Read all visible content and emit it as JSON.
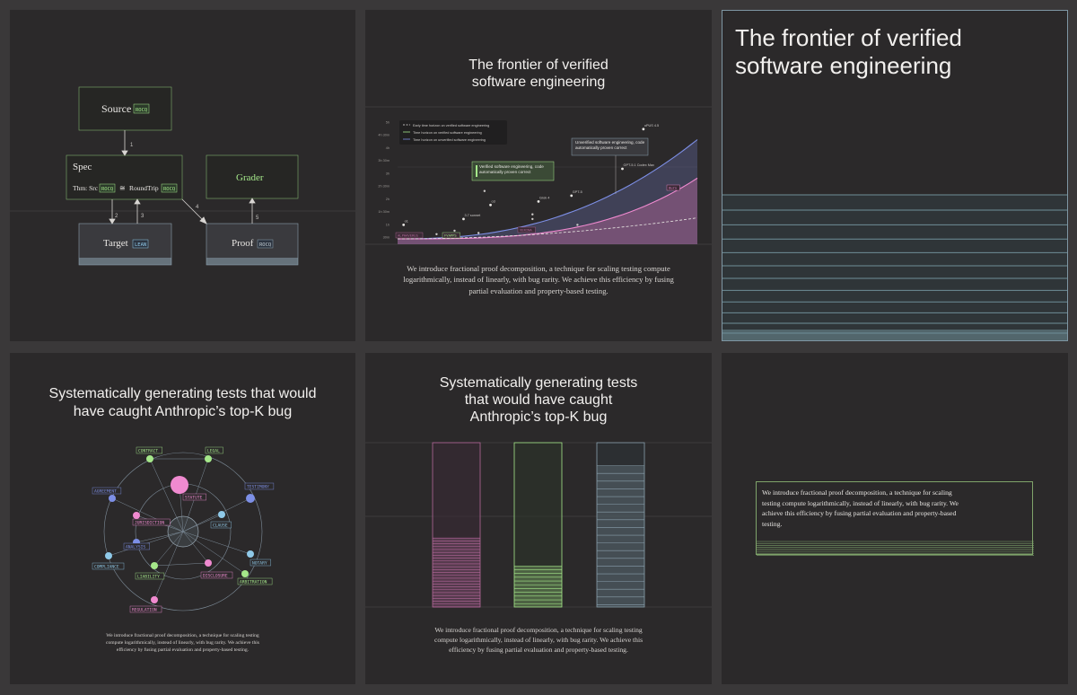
{
  "colors": {
    "background": "#3a3839",
    "panel": "#2b292a",
    "green": "#a5e88a",
    "blue": "#7d8fe6",
    "cyan": "#8fc9e8",
    "pink": "#f08ad0",
    "slate": "#8aa0ad"
  },
  "diagram": {
    "source": "Source",
    "spec": "Spec",
    "spec_formula": "Thm: Src",
    "round_trip": "RoundTrip",
    "approx_symbol": "≅",
    "grader": "Grader",
    "target": "Target",
    "proof": "Proof",
    "tag_rocq": "ROCQ",
    "tag_lean": "LEAN",
    "edges": [
      "1",
      "2",
      "3",
      "4",
      "5"
    ]
  },
  "frontier_slide": {
    "title_line1": "The frontier of verified",
    "title_line2": "software engineering",
    "paragraph": "We introduce fractional proof decomposition, a technique for scaling testing compute logarithmically, instead of linearly, with bug rarity. We achieve this efficiency by fusing partial evaluation and property-based testing."
  },
  "chart_data": {
    "type": "line",
    "y_ticks": [
      "5h",
      "4h 30m",
      "4h",
      "3h 30m",
      "3h",
      "2h 30m",
      "2h",
      "1h 30m",
      "1h",
      "30m"
    ],
    "series": [
      {
        "name": "Early time horizon on verified software engineering",
        "style": "dashed",
        "color": "#e8e6e3"
      },
      {
        "name": "Time horizon on verified software engineering",
        "style": "solid",
        "color": "#f08ad0"
      },
      {
        "name": "Time horizon on unverified software engineering",
        "style": "solid",
        "color": "#7d8fe6"
      }
    ],
    "points": [
      {
        "label": "o1",
        "t": 0.02,
        "y": 0.12
      },
      {
        "label": "3.7 sonnet",
        "t": 0.22,
        "y": 0.17
      },
      {
        "label": "o3",
        "t": 0.31,
        "y": 0.29
      },
      {
        "label": "Grok 4",
        "t": 0.47,
        "y": 0.32
      },
      {
        "label": "GPT-5",
        "t": 0.58,
        "y": 0.37
      },
      {
        "label": "GPT-5.1 Codex Max",
        "t": 0.75,
        "y": 0.6
      },
      {
        "label": "oPUS 4.5",
        "t": 0.82,
        "y": 0.94
      }
    ],
    "callouts": [
      "Verified software engineering, code automatically proven correct",
      "Unverified software engineering, code automatically proven correct"
    ],
    "tags": [
      "ALPHAVERUS",
      "FVAPPS",
      "VERINA",
      "Ours"
    ]
  },
  "frontier_large": {
    "title_line1": "The frontier of verified",
    "title_line2": "software engineering"
  },
  "graph_slide": {
    "title_line1": "Systematically generating tests that would",
    "title_line2": "have caught Anthropic’s top-K bug",
    "labels": [
      "CONTRACT",
      "LEGAL",
      "TESTIMONY",
      "AGREEMENT",
      "STATUTE",
      "JURISDICTION",
      "CLAUSE",
      "ANALYSIS",
      "NOTARY",
      "COMPLIANCE",
      "LIABILITY",
      "DISCLOSURE",
      "ARBITRATION",
      "REGULATION"
    ],
    "paragraph_line1": "We introduce fractional proof decomposition, a technique for scaling testing",
    "paragraph_line2": "compute logarithmically, instead of linearly, with bug rarity. We achieve this",
    "paragraph_line3": "efficiency by fusing partial evaluation and property-based testing."
  },
  "bars_slide": {
    "title_line1": "Systematically generating tests",
    "title_line2": "that would have caught",
    "title_line3": "Anthropic’s top-K bug",
    "fills": [
      0.42,
      0.25,
      0.86
    ],
    "paragraph_line1": "We introduce fractional proof decomposition, a technique for scaling testing",
    "paragraph_line2": "compute logarithmically, instead of linearly, with bug rarity. We achieve this",
    "paragraph_line3": "efficiency by fusing partial evaluation and property-based testing."
  },
  "card_slide": {
    "line1": "We introduce fractional proof decomposition, a technique for scaling",
    "line2": "testing compute logarithmically, instead of linearly, with bug rarity. We",
    "line3": "achieve this efficiency by fusing partial evaluation and property-based",
    "line4": "testing."
  }
}
